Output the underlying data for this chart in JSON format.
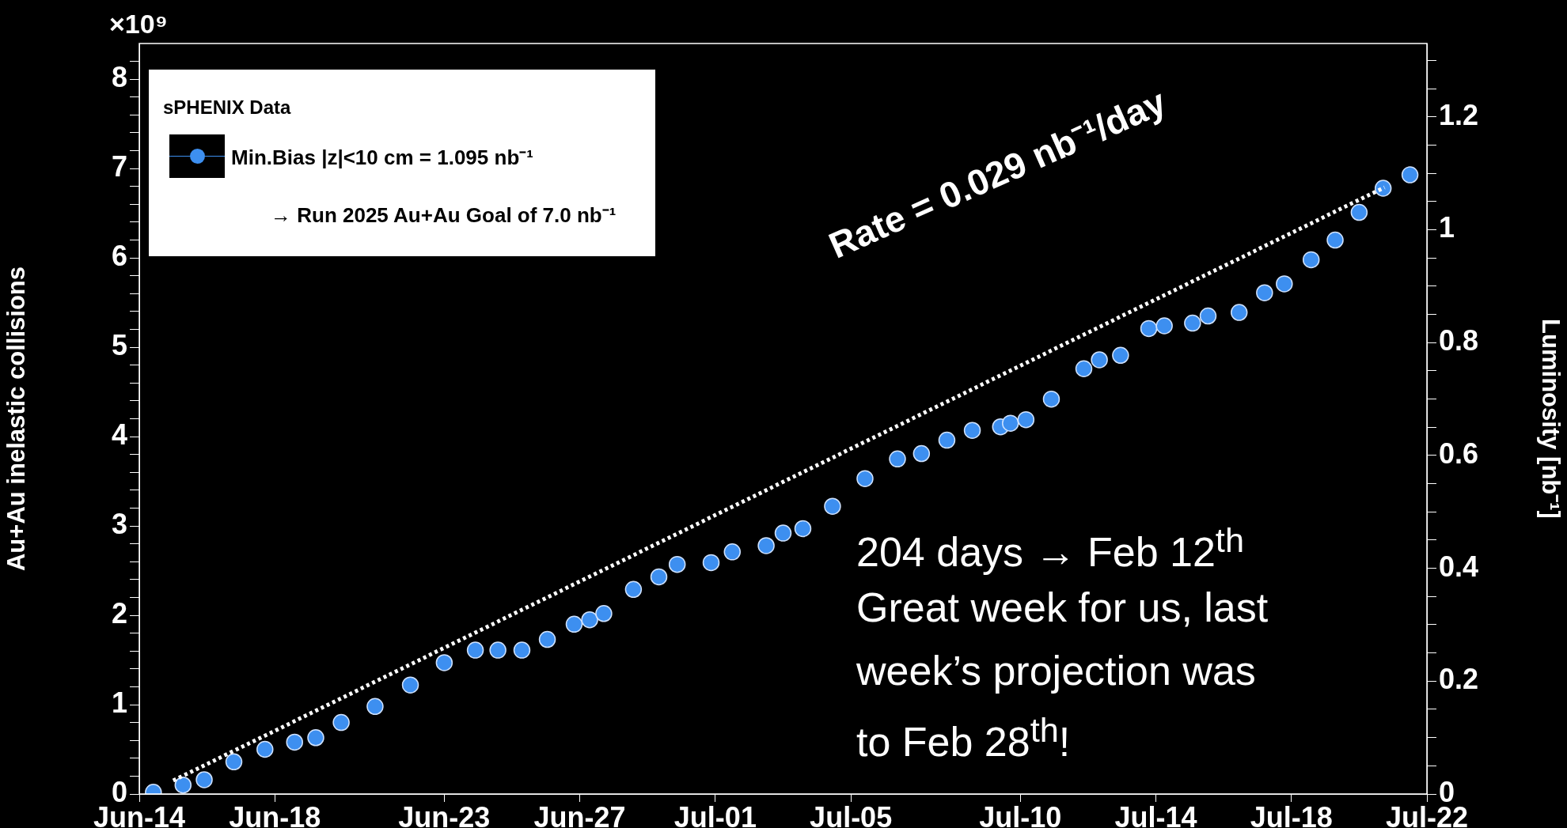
{
  "chart_data": {
    "type": "scatter",
    "ylabel": "Au+Au inelastic collisions",
    "y2label": "Luminosity [nb⁻¹]",
    "legend_title": "sPHENIX Data",
    "legend": "top left",
    "grid": false,
    "annotations": [
      "×10⁹",
      "Rate = 0.029 nb⁻¹/day",
      "204 days → Feb 12$^{th}$",
      "Great week for us, last",
      "week’s projection was",
      "to Feb 28$^{th}$!",
      "→  Run 2025 Au+Au Goal of 7.0 nb⁻¹"
    ],
    "xlim": [
      "--06-14",
      "--07-22"
    ],
    "xticks": [
      {
        "value": "--06-14",
        "label": "Jun-14"
      },
      {
        "value": "--06-18",
        "label": "Jun-18"
      },
      {
        "value": "--06-23",
        "label": "Jun-23"
      },
      {
        "value": "--06-27",
        "label": "Jun-27"
      },
      {
        "value": "--07-01",
        "label": "Jul-01"
      },
      {
        "value": "--07-05",
        "label": "Jul-05"
      },
      {
        "value": "--07-10",
        "label": "Jul-10"
      },
      {
        "value": "--07-14",
        "label": "Jul-14"
      },
      {
        "value": "--07-18",
        "label": "Jul-18"
      },
      {
        "value": "--07-22",
        "label": "Jul-22"
      }
    ],
    "ylim": [
      0,
      8.4
    ],
    "yticks": [
      0,
      {
        "value": 0.2,
        "label": null
      },
      {
        "value": 0.4,
        "label": null
      },
      {
        "value": 0.6,
        "label": null
      },
      {
        "value": 0.8,
        "label": null
      },
      1,
      {
        "value": 1.2,
        "label": null
      },
      {
        "value": 1.4,
        "label": null
      },
      {
        "value": 1.6,
        "label": null
      },
      {
        "value": 1.8,
        "label": null
      },
      2,
      {
        "value": 2.2,
        "label": null
      },
      {
        "value": 2.4,
        "label": null
      },
      {
        "value": 2.6,
        "label": null
      },
      {
        "value": 2.8,
        "label": null
      },
      3,
      {
        "value": 3.2,
        "label": null
      },
      {
        "value": 3.4,
        "label": null
      },
      {
        "value": 3.6,
        "label": null
      },
      {
        "value": 3.8,
        "label": null
      },
      4,
      {
        "value": 4.2,
        "label": null
      },
      {
        "value": 4.4,
        "label": null
      },
      {
        "value": 4.6,
        "label": null
      },
      {
        "value": 4.8,
        "label": null
      },
      5,
      {
        "value": 5.2,
        "label": null
      },
      {
        "value": 5.4,
        "label": null
      },
      {
        "value": 5.6,
        "label": null
      },
      {
        "value": 5.8,
        "label": null
      },
      6,
      {
        "value": 6.2,
        "label": null
      },
      {
        "value": 6.4,
        "label": null
      },
      {
        "value": 6.6,
        "label": null
      },
      {
        "value": 6.8,
        "label": null
      },
      7,
      {
        "value": 7.2,
        "label": null
      },
      {
        "value": 7.4,
        "label": null
      },
      {
        "value": 7.6,
        "label": null
      },
      {
        "value": 7.8,
        "label": null
      },
      8,
      {
        "value": 8.2,
        "label": null
      }
    ],
    "y2lim": [
      0,
      1.33
    ],
    "y2ticks": [
      0,
      {
        "value": 0.05,
        "label": null
      },
      {
        "value": 0.1,
        "label": null
      },
      {
        "value": 0.15,
        "label": null
      },
      0.2,
      {
        "value": 0.25,
        "label": null
      },
      {
        "value": 0.3,
        "label": null
      },
      {
        "value": 0.35,
        "label": null
      },
      0.4,
      {
        "value": 0.45,
        "label": null
      },
      {
        "value": 0.5,
        "label": null
      },
      {
        "value": 0.55,
        "label": null
      },
      0.6,
      {
        "value": 0.65,
        "label": null
      },
      {
        "value": 0.7,
        "label": null
      },
      {
        "value": 0.75,
        "label": null
      },
      0.8,
      {
        "value": 0.85,
        "label": null
      },
      {
        "value": 0.9,
        "label": null
      },
      {
        "value": 0.95,
        "label": null
      },
      1,
      {
        "value": 1.05,
        "label": null
      },
      {
        "value": 1.1,
        "label": null
      },
      {
        "value": 1.15,
        "label": null
      },
      1.2,
      {
        "value": 1.25,
        "label": null
      },
      {
        "value": 1.3,
        "label": null
      }
    ],
    "series": [
      {
        "type": "scatter",
        "name": "Min.Bias |z|<10 cm = 1.095 nb⁻¹",
        "color": "#3d8ff0",
        "marker": "circle",
        "x": [
          "--06-14T10:00",
          "--06-15T07:00",
          "--06-15T22:00",
          "--06-16T19:00",
          "--06-17T17:00",
          "--06-18T14:00",
          "--06-19T05:00",
          "--06-19T23:00",
          "--06-20T23:00",
          "--06-22T00:00",
          "--06-23T00:00",
          "--06-23T22:00",
          "--06-24T14:00",
          "--06-25T07:00",
          "--06-26T01:00",
          "--06-26T20:00",
          "--06-27T07:00",
          "--06-27T17:00",
          "--06-28T14:00",
          "--06-29T08:00",
          "--06-29T21:00",
          "--06-30T21:00",
          "--07-01T12:00",
          "--07-02T12:00",
          "--07-03T00:00",
          "--07-03T14:00",
          "--07-04T11:00",
          "--07-05T10:00",
          "--07-06T09:00",
          "--07-07T02:00",
          "--07-07T20:00",
          "--07-08T14:00",
          "--07-09T10:00",
          "--07-09T17:00",
          "--07-10T04:00",
          "--07-10T22:00",
          "--07-11T21:00",
          "--07-12T08:00",
          "--07-12T23:00",
          "--07-13T19:00",
          "--07-14T06:00",
          "--07-15T02:00",
          "--07-15T13:00",
          "--07-16T11:00",
          "--07-17T05:00",
          "--07-17T19:00",
          "--07-18T14:00",
          "--07-19T07:00",
          "--07-20T00:00",
          "--07-20T17:00",
          "--07-21T12:00"
        ],
        "values": [
          0.02,
          0.1,
          0.16,
          0.36,
          0.5,
          0.58,
          0.63,
          0.8,
          0.98,
          1.22,
          1.47,
          1.61,
          1.61,
          1.61,
          1.73,
          1.9,
          1.95,
          2.02,
          2.29,
          2.43,
          2.57,
          2.59,
          2.71,
          2.78,
          2.92,
          2.97,
          3.22,
          3.53,
          3.75,
          3.81,
          3.96,
          4.07,
          4.11,
          4.15,
          4.19,
          4.42,
          4.76,
          4.86,
          4.91,
          5.21,
          5.24,
          5.27,
          5.35,
          5.39,
          5.61,
          5.71,
          5.98,
          6.2,
          6.51,
          6.78,
          6.93
        ]
      },
      {
        "type": "line",
        "color": "#ffffff",
        "marker": "none",
        "line_style": "dotted",
        "x": [
          "--06-15T00:00",
          "--07-20T18:00"
        ],
        "values": [
          0.15,
          6.79
        ]
      }
    ]
  }
}
